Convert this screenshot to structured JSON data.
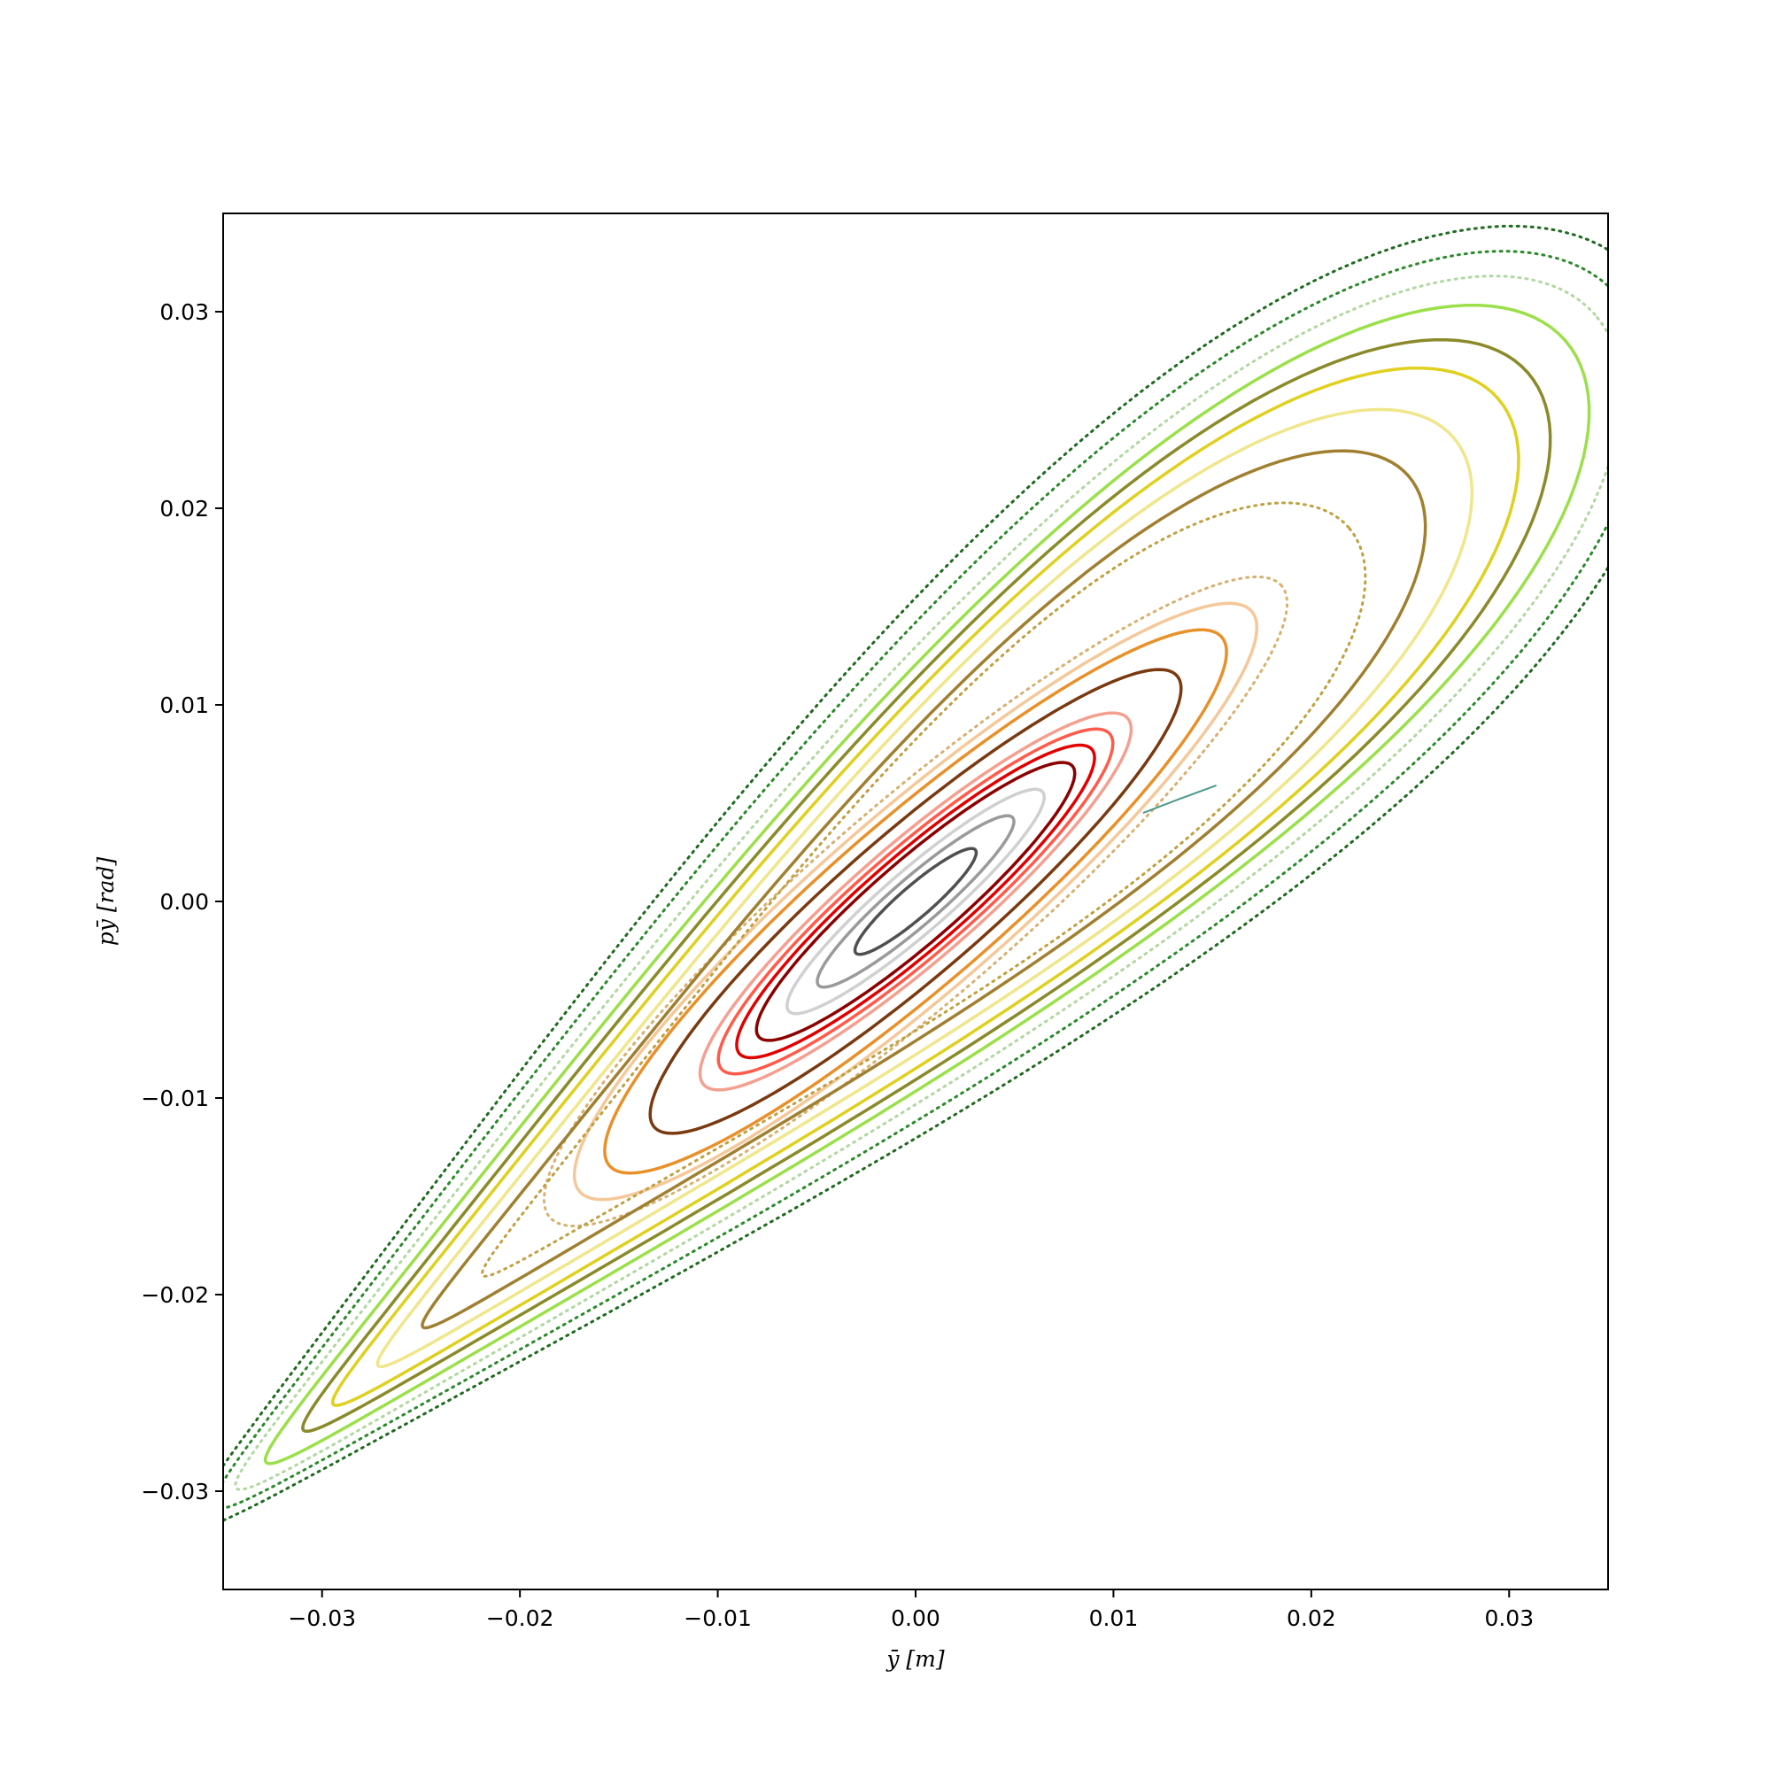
{
  "chart_data": {
    "type": "scatter",
    "title": "",
    "xlabel": "ȳ [m]",
    "ylabel": "pȳ [rad]",
    "xlim": [
      -0.035,
      0.035
    ],
    "ylim": [
      -0.035,
      0.035
    ],
    "xticks": [
      -0.03,
      -0.02,
      -0.01,
      0.0,
      0.01,
      0.02,
      0.03
    ],
    "yticks": [
      -0.03,
      -0.02,
      -0.01,
      0.0,
      0.01,
      0.02,
      0.03
    ],
    "xtick_labels": [
      "−0.03",
      "−0.02",
      "−0.01",
      "0.00",
      "0.01",
      "0.02",
      "0.03"
    ],
    "ytick_labels": [
      "−0.03",
      "−0.02",
      "−0.01",
      "0.00",
      "0.01",
      "0.02",
      "0.03"
    ],
    "grid": false,
    "legend": "none",
    "colors": {
      "core": "#3a3a3a",
      "inner_red": "#d00000",
      "mid_orange": "#e8902a",
      "outer_yellow": "#d8c030",
      "edge_green": "#2a8a2a",
      "lime": "#9be04a"
    },
    "series": [
      {
        "kind": "orbit",
        "color": "#505050",
        "axis_major": 0.004,
        "axis_minor": 0.0008,
        "tilt_deg": 41,
        "style": "solid"
      },
      {
        "kind": "orbit",
        "color": "#9a9a9a",
        "axis_major": 0.0065,
        "axis_minor": 0.0012,
        "tilt_deg": 41,
        "style": "solid"
      },
      {
        "kind": "orbit",
        "color": "#d0d0d0",
        "axis_major": 0.0085,
        "axis_minor": 0.0016,
        "tilt_deg": 41,
        "style": "solid"
      },
      {
        "kind": "orbit",
        "color": "#8b0000",
        "axis_major": 0.0105,
        "axis_minor": 0.0021,
        "tilt_deg": 41,
        "style": "solid"
      },
      {
        "kind": "orbit",
        "color": "#e00000",
        "axis_major": 0.0118,
        "axis_minor": 0.0024,
        "tilt_deg": 41,
        "style": "solid"
      },
      {
        "kind": "orbit",
        "color": "#ff5a4a",
        "axis_major": 0.013,
        "axis_minor": 0.0027,
        "tilt_deg": 41,
        "style": "solid"
      },
      {
        "kind": "orbit",
        "color": "#f4a090",
        "axis_major": 0.0142,
        "axis_minor": 0.003,
        "tilt_deg": 41,
        "style": "solid"
      },
      {
        "kind": "orbit",
        "color": "#7a3a10",
        "axis_major": 0.0175,
        "axis_minor": 0.0036,
        "tilt_deg": 41,
        "style": "solid"
      },
      {
        "kind": "orbit",
        "color": "#e8902a",
        "axis_major": 0.0205,
        "axis_minor": 0.0042,
        "tilt_deg": 41,
        "style": "solid"
      },
      {
        "kind": "orbit",
        "color": "#f5c89a",
        "axis_major": 0.0225,
        "axis_minor": 0.0046,
        "tilt_deg": 41,
        "style": "solid"
      },
      {
        "kind": "orbit",
        "color": "#d8b070",
        "axis_major": 0.0245,
        "axis_minor": 0.005,
        "tilt_deg": 41,
        "style": "dotted"
      },
      {
        "kind": "orbit",
        "color": "#c0a040",
        "axis_major": 0.029,
        "axis_minor": 0.0056,
        "tilt_deg": 41,
        "style": "dotted"
      },
      {
        "kind": "orbit",
        "color": "#a08030",
        "axis_major": 0.033,
        "axis_minor": 0.006,
        "tilt_deg": 41,
        "style": "solid"
      },
      {
        "kind": "orbit",
        "color": "#f0e68c",
        "axis_major": 0.036,
        "axis_minor": 0.0066,
        "tilt_deg": 41,
        "style": "solid"
      },
      {
        "kind": "orbit",
        "color": "#e0d020",
        "axis_major": 0.039,
        "axis_minor": 0.0072,
        "tilt_deg": 41,
        "style": "solid"
      },
      {
        "kind": "orbit",
        "color": "#8a8a2a",
        "axis_major": 0.041,
        "axis_minor": 0.0077,
        "tilt_deg": 41,
        "style": "solid"
      },
      {
        "kind": "orbit",
        "color": "#9be04a",
        "axis_major": 0.0435,
        "axis_minor": 0.0082,
        "tilt_deg": 41,
        "style": "solid"
      },
      {
        "kind": "orbit",
        "color": "#b0d8a0",
        "axis_major": 0.0455,
        "axis_minor": 0.0088,
        "tilt_deg": 41,
        "style": "dotted"
      },
      {
        "kind": "orbit",
        "color": "#2a8a2a",
        "axis_major": 0.047,
        "axis_minor": 0.0096,
        "tilt_deg": 41,
        "style": "dotted"
      },
      {
        "kind": "orbit",
        "color": "#1e6a1e",
        "axis_major": 0.0485,
        "axis_minor": 0.0104,
        "tilt_deg": 41,
        "style": "dotted"
      }
    ],
    "stray_tail": {
      "color": "#4a9a8a",
      "x": [
        0.0115,
        0.0133,
        0.0152
      ],
      "y": [
        0.0045,
        0.0052,
        0.0059
      ]
    }
  }
}
